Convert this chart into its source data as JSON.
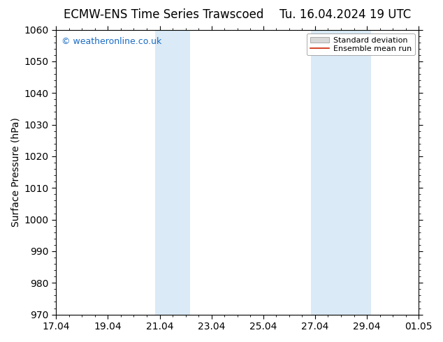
{
  "title_left": "ECMW-ENS Time Series Trawscoed",
  "title_right": "Tu. 16.04.2024 19 UTC",
  "ylabel": "Surface Pressure (hPa)",
  "ylim": [
    970,
    1060
  ],
  "yticks": [
    970,
    980,
    990,
    1000,
    1010,
    1020,
    1030,
    1040,
    1050,
    1060
  ],
  "xtick_labels": [
    "17.04",
    "19.04",
    "21.04",
    "23.04",
    "25.04",
    "27.04",
    "29.04",
    "01.05"
  ],
  "xtick_positions": [
    0,
    2,
    4,
    6,
    8,
    10,
    12,
    14
  ],
  "x_min": 0,
  "x_max": 14,
  "shaded_bands": [
    {
      "x_start": 3.83,
      "x_end": 5.17
    },
    {
      "x_start": 9.83,
      "x_end": 12.17
    }
  ],
  "shade_color": "#daeaf6",
  "background_color": "#ffffff",
  "watermark_text": "© weatheronline.co.uk",
  "watermark_color": "#1a6bc4",
  "legend_std_label": "Standard deviation",
  "legend_mean_label": "Ensemble mean run",
  "legend_std_facecolor": "#d8d8d8",
  "legend_std_edgecolor": "#aaaaaa",
  "legend_mean_color": "#cc2200",
  "title_fontsize": 12,
  "axis_label_fontsize": 10,
  "tick_fontsize": 10,
  "watermark_fontsize": 9,
  "legend_fontsize": 8
}
